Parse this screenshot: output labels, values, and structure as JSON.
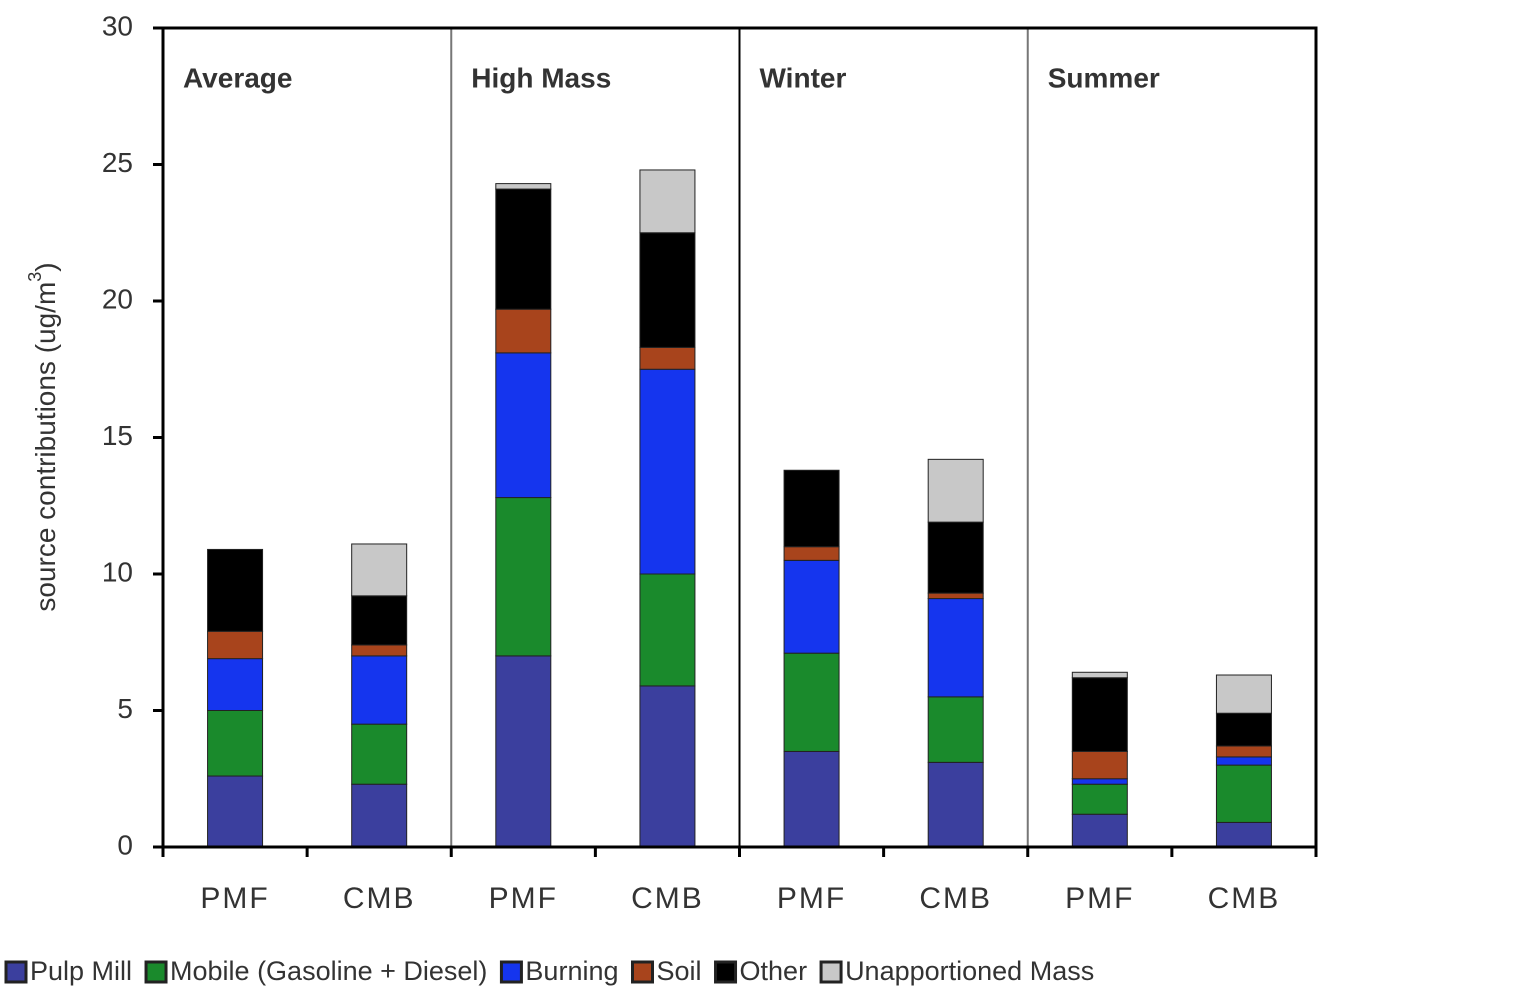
{
  "chart_data": {
    "type": "stacked-bar",
    "ylabel": [
      "source contributions (ug/m",
      "3",
      ")"
    ],
    "groups": [
      "Average",
      "High Mass",
      "Winter",
      "Summer"
    ],
    "categories": [
      "PMF",
      "CMB",
      "PMF",
      "CMB",
      "PMF",
      "CMB",
      "PMF",
      "CMB"
    ],
    "series": [
      {
        "name": "Pulp Mill",
        "color": "#3b3f9e",
        "values": [
          2.6,
          2.3,
          7.0,
          5.9,
          3.5,
          3.1,
          1.2,
          0.9
        ]
      },
      {
        "name": "Mobile (Gasoline + Diesel)",
        "color": "#1a8a2c",
        "values": [
          2.4,
          2.2,
          5.8,
          4.1,
          3.6,
          2.4,
          1.1,
          2.1
        ]
      },
      {
        "name": "Burning",
        "color": "#1535ee",
        "values": [
          1.9,
          2.5,
          5.3,
          7.5,
          3.4,
          3.6,
          0.2,
          0.3
        ]
      },
      {
        "name": "Soil",
        "color": "#a8441c",
        "values": [
          1.0,
          0.4,
          1.6,
          0.8,
          0.5,
          0.2,
          1.0,
          0.4
        ]
      },
      {
        "name": "Other",
        "color": "#000000",
        "values": [
          3.0,
          1.8,
          4.4,
          4.2,
          2.8,
          2.6,
          2.7,
          1.2
        ]
      },
      {
        "name": "Unapportioned Mass",
        "color": "#c8c8c8",
        "values": [
          0,
          1.9,
          0.2,
          2.3,
          0,
          2.3,
          0.2,
          1.4
        ]
      }
    ],
    "ylim": [
      0,
      30
    ],
    "yticks": [
      0,
      5,
      10,
      15,
      20,
      25,
      30
    ]
  }
}
